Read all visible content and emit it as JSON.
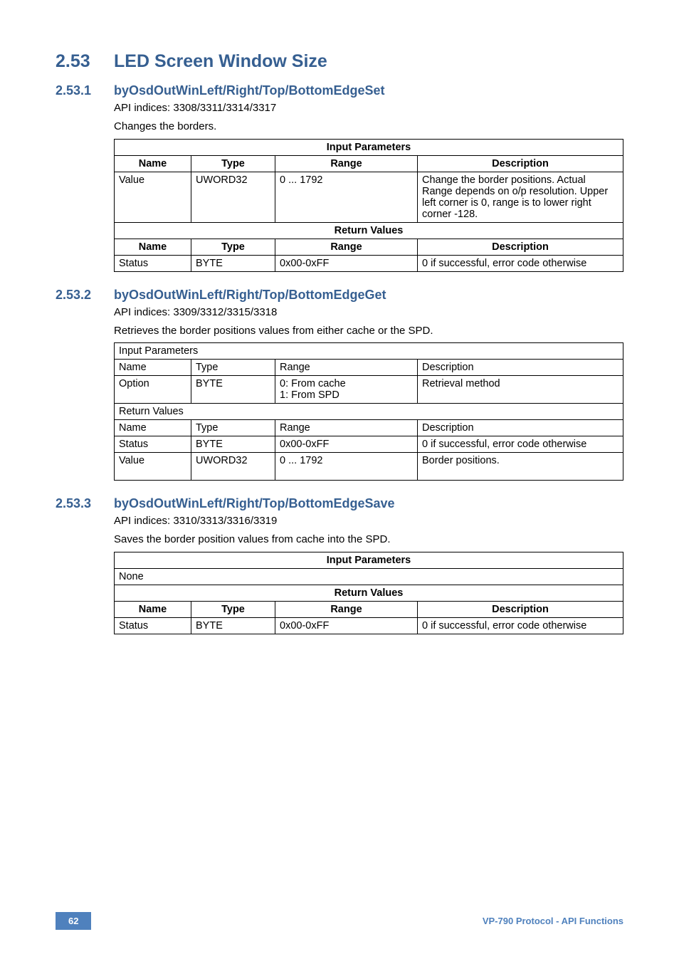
{
  "h2": {
    "num": "2.53",
    "title": "LED Screen Window Size"
  },
  "sections": [
    {
      "num": "2.53.1",
      "title": "byOsdOutWinLeft/Right/Top/BottomEdgeSet",
      "api": "API indices: 3308/3311/3314/3317",
      "desc": "Changes the borders.",
      "table": {
        "bold_headers": true,
        "ip_header": "Input Parameters",
        "cols": [
          "Name",
          "Type",
          "Range",
          "Description"
        ],
        "ip_rows": [
          [
            "Value",
            "UWORD32",
            "0 ... 1792",
            "Change the border positions. Actual Range depends on o/p resolution. Upper left corner is 0, range is to lower right corner -128."
          ]
        ],
        "rv_header": "Return Values",
        "rv_cols": [
          "Name",
          "Type",
          "Range",
          "Description"
        ],
        "rv_rows": [
          [
            "Status",
            "BYTE",
            "0x00-0xFF",
            "0 if successful, error code otherwise"
          ]
        ]
      }
    },
    {
      "num": "2.53.2",
      "title": "byOsdOutWinLeft/Right/Top/BottomEdgeGet",
      "api": "API indices: 3309/3312/3315/3318",
      "desc": "Retrieves the border positions values from either cache or the SPD.",
      "table": {
        "bold_headers": false,
        "ip_header": "Input Parameters",
        "cols": [
          "Name",
          "Type",
          "Range",
          "Description"
        ],
        "ip_rows": [
          [
            "Option",
            "BYTE",
            "0: From cache\n1: From SPD",
            "Retrieval method"
          ]
        ],
        "rv_header": "Return Values",
        "rv_cols": [
          "Name",
          "Type",
          "Range",
          "Description"
        ],
        "rv_rows": [
          [
            "Status",
            "BYTE",
            "0x00-0xFF",
            "0 if successful, error code otherwise"
          ],
          [
            "Value",
            "UWORD32",
            "0 ... 1792",
            "Border positions.\n "
          ]
        ]
      }
    },
    {
      "num": "2.53.3",
      "title": "byOsdOutWinLeft/Right/Top/BottomEdgeSave",
      "api": "API indices: 3310/3313/3316/3319",
      "desc": "Saves the border position values from cache into the SPD.",
      "table": {
        "bold_headers": true,
        "ip_header": "Input Parameters",
        "none_row": "None",
        "rv_header": "Return Values",
        "rv_cols": [
          "Name",
          "Type",
          "Range",
          "Description"
        ],
        "rv_rows": [
          [
            "Status",
            "BYTE",
            "0x00-0xFF",
            "0 if successful, error code otherwise"
          ]
        ]
      }
    }
  ],
  "footer": {
    "page": "62",
    "text": "VP-790 Protocol - API Functions"
  },
  "colors": {
    "heading": "#365f91",
    "accent": "#4f81bd",
    "text": "#000000",
    "border": "#000000",
    "background": "#ffffff"
  }
}
